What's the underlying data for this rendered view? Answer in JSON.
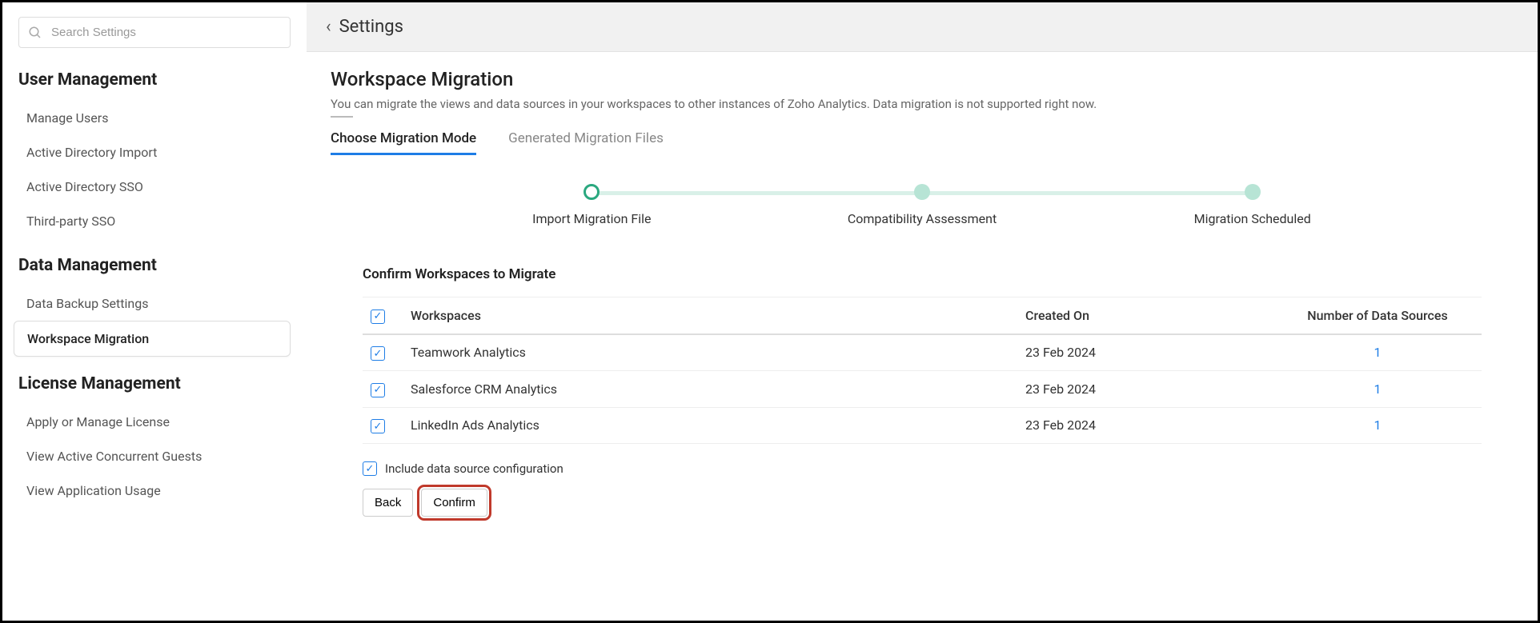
{
  "search": {
    "placeholder": "Search Settings"
  },
  "sidebar": {
    "sections": [
      {
        "title": "User Management",
        "items": [
          {
            "label": "Manage Users",
            "active": false
          },
          {
            "label": "Active Directory Import",
            "active": false
          },
          {
            "label": "Active Directory SSO",
            "active": false
          },
          {
            "label": "Third-party SSO",
            "active": false
          }
        ]
      },
      {
        "title": "Data Management",
        "items": [
          {
            "label": "Data Backup Settings",
            "active": false
          },
          {
            "label": "Workspace Migration",
            "active": true
          }
        ]
      },
      {
        "title": "License Management",
        "items": [
          {
            "label": "Apply or Manage License",
            "active": false
          },
          {
            "label": "View Active Concurrent Guests",
            "active": false
          },
          {
            "label": "View Application Usage",
            "active": false
          }
        ]
      }
    ]
  },
  "topbar": {
    "title": "Settings"
  },
  "page": {
    "title": "Workspace Migration",
    "description": "You can migrate the views and data sources in your workspaces to other instances of Zoho Analytics. Data migration is not supported right now."
  },
  "tabs": [
    {
      "label": "Choose Migration Mode",
      "active": true
    },
    {
      "label": "Generated Migration Files",
      "active": false
    }
  ],
  "steps": [
    {
      "label": "Import Migration File",
      "style": "ring"
    },
    {
      "label": "Compatibility Assessment",
      "style": "fill"
    },
    {
      "label": "Migration Scheduled",
      "style": "fill"
    }
  ],
  "panel": {
    "title": "Confirm Workspaces to Migrate",
    "columns": {
      "workspace": "Workspaces",
      "created": "Created On",
      "sources": "Number of Data Sources"
    },
    "header_checked": true,
    "rows": [
      {
        "checked": true,
        "workspace": "Teamwork Analytics",
        "created": "23 Feb 2024",
        "sources": "1"
      },
      {
        "checked": true,
        "workspace": "Salesforce CRM Analytics",
        "created": "23 Feb 2024",
        "sources": "1"
      },
      {
        "checked": true,
        "workspace": "LinkedIn Ads Analytics",
        "created": "23 Feb 2024",
        "sources": "1"
      }
    ],
    "include_label": "Include data source configuration",
    "include_checked": true,
    "back_label": "Back",
    "confirm_label": "Confirm"
  },
  "colors": {
    "accent_blue": "#1e7de6",
    "accent_green": "#2aa87f",
    "step_fill": "#b7e4d5",
    "step_line": "#d9f0e8",
    "highlight_red": "#c0392b"
  }
}
